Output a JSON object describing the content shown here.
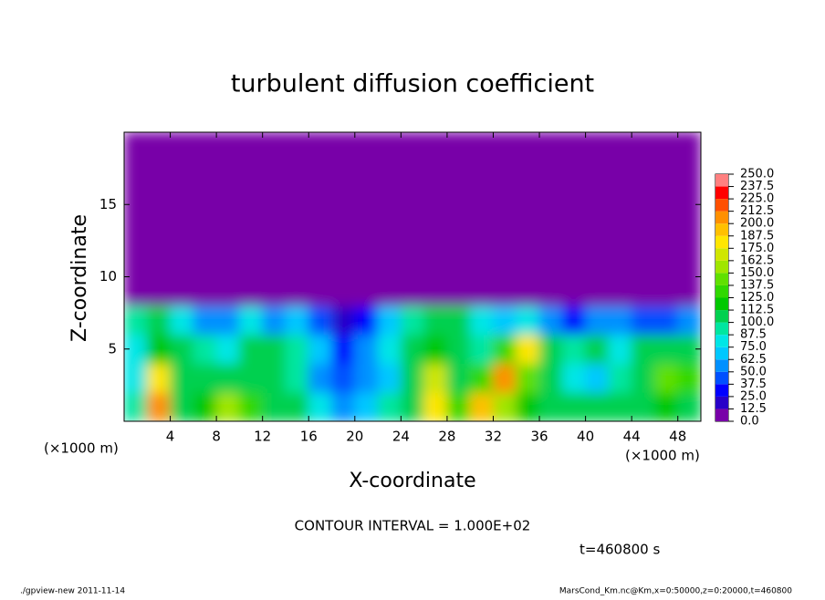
{
  "chart_data": {
    "type": "contour",
    "title": "turbulent diffusion coefficient",
    "x_label": "X-coordinate",
    "y_label": "Z-coordinate",
    "x_unit_label": "(×1000 m)",
    "y_unit_label": "(×1000 m)",
    "contour_note": "CONTOUR INTERVAL = 1.000E+02",
    "time_label": "t=460800 s",
    "footer_left": "./gpview-new  2011-11-14",
    "footer_right": "MarsCond_Km.nc@Km,x=0:50000,z=0:20000,t=460800",
    "xlim": [
      0,
      50
    ],
    "ylim": [
      0,
      20
    ],
    "xticks": [
      4,
      8,
      12,
      16,
      20,
      24,
      28,
      32,
      36,
      40,
      44,
      48
    ],
    "yticks": [
      5,
      10,
      15
    ],
    "levels": [
      {
        "value": 0,
        "label": "0.0"
      },
      {
        "value": 12.5,
        "label": "12.5"
      },
      {
        "value": 25,
        "label": "25.0"
      },
      {
        "value": 37.5,
        "label": "37.5"
      },
      {
        "value": 50,
        "label": "50.0"
      },
      {
        "value": 62.5,
        "label": "62.5"
      },
      {
        "value": 75,
        "label": "75.0"
      },
      {
        "value": 87.5,
        "label": "87.5"
      },
      {
        "value": 100,
        "label": "100.0"
      },
      {
        "value": 112.5,
        "label": "112.5"
      },
      {
        "value": 125,
        "label": "125.0"
      },
      {
        "value": 137.5,
        "label": "137.5"
      },
      {
        "value": 150,
        "label": "150.0"
      },
      {
        "value": 162.5,
        "label": "162.5"
      },
      {
        "value": 175,
        "label": "175.0"
      },
      {
        "value": 187.5,
        "label": "187.5"
      },
      {
        "value": 200,
        "label": "200.0"
      },
      {
        "value": 212.5,
        "label": "212.5"
      },
      {
        "value": 225,
        "label": "225.0"
      },
      {
        "value": 237.5,
        "label": "237.5"
      },
      {
        "value": 250,
        "label": "250.0"
      }
    ],
    "colors": [
      "#7800a8",
      "#2800c8",
      "#0000ff",
      "#0050ff",
      "#0090ff",
      "#00c8ff",
      "#00e6e6",
      "#00e6a0",
      "#00d050",
      "#00c800",
      "#30d800",
      "#60e000",
      "#a0e600",
      "#d0e600",
      "#ffe600",
      "#ffc000",
      "#ff9000",
      "#ff5000",
      "#ff0000",
      "#ff8080"
    ],
    "z": [
      [
        90,
        200,
        110,
        120,
        150,
        130,
        110,
        100,
        80,
        60,
        70,
        90,
        110,
        180,
        130,
        190,
        160,
        120,
        110,
        100,
        110,
        100,
        110,
        120,
        110
      ],
      [
        80,
        180,
        110,
        100,
        110,
        100,
        110,
        90,
        60,
        40,
        50,
        70,
        100,
        170,
        110,
        130,
        200,
        140,
        110,
        80,
        70,
        90,
        110,
        140,
        130
      ],
      [
        80,
        120,
        100,
        90,
        80,
        100,
        100,
        90,
        70,
        30,
        50,
        80,
        110,
        120,
        110,
        90,
        130,
        180,
        100,
        90,
        100,
        80,
        100,
        110,
        100
      ],
      [
        90,
        100,
        80,
        50,
        60,
        80,
        60,
        70,
        40,
        15,
        30,
        70,
        90,
        110,
        100,
        80,
        70,
        80,
        50,
        30,
        60,
        50,
        40,
        40,
        60
      ],
      [
        0,
        0,
        0,
        0,
        0,
        0,
        0,
        0,
        0,
        0,
        0,
        0,
        0,
        0,
        0,
        0,
        0,
        0,
        0,
        0,
        0,
        0,
        0,
        0,
        0
      ],
      [
        0,
        0,
        0,
        0,
        0,
        0,
        0,
        0,
        0,
        0,
        0,
        0,
        0,
        0,
        0,
        0,
        0,
        0,
        0,
        0,
        0,
        0,
        0,
        0,
        0
      ],
      [
        0,
        0,
        0,
        0,
        0,
        0,
        0,
        0,
        0,
        0,
        0,
        0,
        0,
        0,
        0,
        0,
        0,
        0,
        0,
        0,
        0,
        0,
        0,
        0,
        0
      ],
      [
        0,
        0,
        0,
        0,
        0,
        0,
        0,
        0,
        0,
        0,
        0,
        0,
        0,
        0,
        0,
        0,
        0,
        0,
        0,
        0,
        0,
        0,
        0,
        0,
        0
      ],
      [
        0,
        0,
        0,
        0,
        0,
        0,
        0,
        0,
        0,
        0,
        0,
        0,
        0,
        0,
        0,
        0,
        0,
        0,
        0,
        0,
        0,
        0,
        0,
        0,
        0
      ],
      [
        0,
        0,
        0,
        0,
        0,
        0,
        0,
        0,
        0,
        0,
        0,
        0,
        0,
        0,
        0,
        0,
        0,
        0,
        0,
        0,
        0,
        0,
        0,
        0,
        0
      ]
    ]
  }
}
